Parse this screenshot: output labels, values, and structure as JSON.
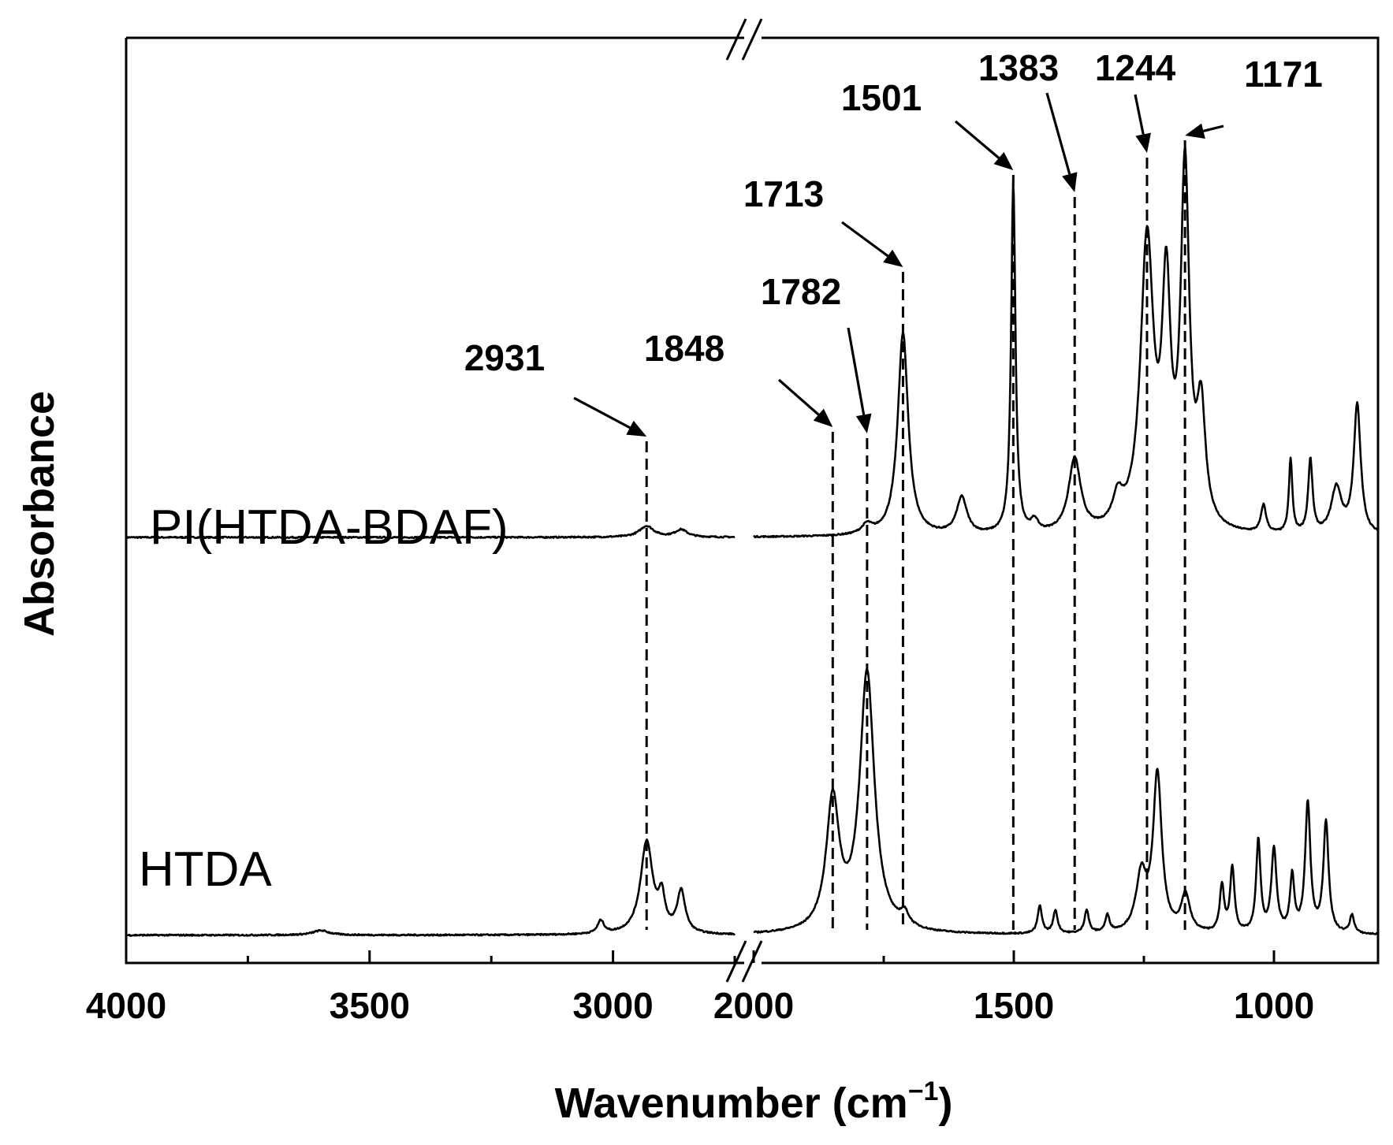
{
  "chart_data": {
    "type": "line",
    "xlabel": "Wavenumber (cm",
    "xlabel_sup": "−1",
    "xlabel_close": ")",
    "ylabel": "Absorbance",
    "x_axis": {
      "reversed": true,
      "broken": true,
      "segments": [
        {
          "from": 4000,
          "to": 2750
        },
        {
          "from": 2000,
          "to": 800
        }
      ],
      "ticks": [
        {
          "value": 4000,
          "label": "4000"
        },
        {
          "value": 3500,
          "label": "3500"
        },
        {
          "value": 3000,
          "label": "3000"
        },
        {
          "value": 2000,
          "label": "2000"
        },
        {
          "value": 1500,
          "label": "1500"
        },
        {
          "value": 1000,
          "label": "1000"
        }
      ],
      "minor_ticks": [
        3750,
        3250,
        2750,
        1750,
        1250
      ]
    },
    "grid": false,
    "ylim": [
      0,
      1.0
    ],
    "series": [
      {
        "name": "PI(HTDA-BDAF)",
        "baseline": 0.46,
        "noise": 0.0015,
        "peaks": [
          [
            2931,
            0.012,
            18
          ],
          [
            2860,
            0.008,
            15
          ],
          [
            1782,
            0.01,
            12
          ],
          [
            1713,
            0.22,
            12
          ],
          [
            1600,
            0.04,
            12
          ],
          [
            1501,
            0.38,
            5
          ],
          [
            1460,
            0.012,
            8
          ],
          [
            1383,
            0.08,
            14
          ],
          [
            1300,
            0.03,
            12
          ],
          [
            1244,
            0.31,
            15
          ],
          [
            1207,
            0.24,
            10
          ],
          [
            1171,
            0.38,
            10
          ],
          [
            1140,
            0.12,
            10
          ],
          [
            1020,
            0.03,
            6
          ],
          [
            968,
            0.08,
            4
          ],
          [
            930,
            0.08,
            5
          ],
          [
            880,
            0.05,
            12
          ],
          [
            840,
            0.14,
            8
          ]
        ]
      },
      {
        "name": "HTDA",
        "baseline": 0.03,
        "noise": 0.0015,
        "peaks": [
          [
            3600,
            0.005,
            20
          ],
          [
            3025,
            0.014,
            8
          ],
          [
            2931,
            0.1,
            15
          ],
          [
            2900,
            0.035,
            8
          ],
          [
            2860,
            0.045,
            10
          ],
          [
            1848,
            0.14,
            15
          ],
          [
            1782,
            0.28,
            17
          ],
          [
            1710,
            0.014,
            10
          ],
          [
            1450,
            0.03,
            5
          ],
          [
            1420,
            0.025,
            5
          ],
          [
            1360,
            0.025,
            5
          ],
          [
            1320,
            0.018,
            5
          ],
          [
            1255,
            0.06,
            12
          ],
          [
            1224,
            0.17,
            10
          ],
          [
            1170,
            0.04,
            10
          ],
          [
            1100,
            0.05,
            5
          ],
          [
            1080,
            0.07,
            5
          ],
          [
            1030,
            0.1,
            5
          ],
          [
            1000,
            0.09,
            6
          ],
          [
            965,
            0.06,
            5
          ],
          [
            935,
            0.14,
            6
          ],
          [
            900,
            0.12,
            6
          ],
          [
            850,
            0.02,
            5
          ]
        ]
      }
    ],
    "annotations": [
      {
        "text": "2931",
        "x": 2931
      },
      {
        "text": "1848",
        "x": 1848
      },
      {
        "text": "1782",
        "x": 1782
      },
      {
        "text": "1713",
        "x": 1713
      },
      {
        "text": "1501",
        "x": 1501
      },
      {
        "text": "1383",
        "x": 1383
      },
      {
        "text": "1244",
        "x": 1244
      },
      {
        "text": "1171",
        "x": 1171
      }
    ]
  }
}
